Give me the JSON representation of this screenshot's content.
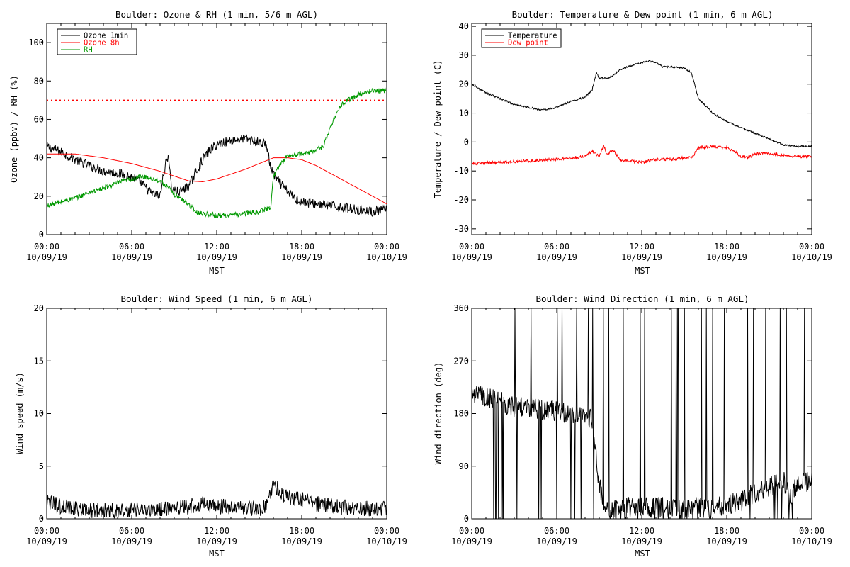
{
  "chart_data": [
    {
      "type": "line",
      "title": "Boulder: Ozone & RH (1 min, 5/6 m AGL)",
      "xlabel": "MST",
      "ylabel": "Ozone (ppbv) / RH (%)",
      "ylim": [
        0,
        110
      ],
      "yticks": [
        0,
        20,
        40,
        60,
        80,
        100
      ],
      "xlim": [
        0,
        24
      ],
      "xtick_hours": [
        0,
        6,
        12,
        18,
        24
      ],
      "xtick_labels": [
        [
          "00:00",
          "10/09/19"
        ],
        [
          "06:00",
          "10/09/19"
        ],
        [
          "12:00",
          "10/09/19"
        ],
        [
          "18:00",
          "10/09/19"
        ],
        [
          "00:00",
          "10/10/19"
        ]
      ],
      "legend": "top-left",
      "reference_line": {
        "y": 70,
        "style": "dotted",
        "color": "#ff0000"
      },
      "series": [
        {
          "name": "Ozone 1min",
          "color": "#000000",
          "noise": 2.5,
          "x": [
            0,
            1,
            2,
            3,
            4,
            5,
            6,
            6.8,
            7.3,
            7.6,
            8,
            8.3,
            8.6,
            8.8,
            9.3,
            9.8,
            10.1,
            10.5,
            11,
            11.5,
            12,
            13,
            14,
            15,
            15.5,
            15.8,
            16.2,
            16.8,
            17.5,
            18,
            19,
            20,
            21,
            22,
            23,
            24
          ],
          "y": [
            46,
            43,
            39,
            36,
            33,
            32,
            30,
            26,
            22,
            21,
            20,
            34,
            42,
            24,
            22,
            24,
            26,
            32,
            39,
            44,
            47,
            49,
            50,
            48,
            47,
            35,
            29,
            24,
            19,
            17,
            16,
            15,
            14,
            13,
            12,
            13
          ]
        },
        {
          "name": "Ozone 8h",
          "color": "#ff0000",
          "noise": 0,
          "x": [
            0,
            2,
            4,
            6,
            8,
            10,
            11,
            12,
            14,
            15,
            16,
            17,
            18,
            19,
            20,
            22,
            24
          ],
          "y": [
            42,
            42,
            40,
            37,
            33,
            28,
            27.5,
            29,
            34,
            37,
            40,
            40,
            39,
            36,
            32,
            24,
            16
          ]
        },
        {
          "name": "RH",
          "color": "#009900",
          "noise": 1.3,
          "x": [
            0,
            1,
            2,
            3,
            4,
            5,
            6,
            6.5,
            7,
            8,
            8.5,
            9,
            10,
            10.5,
            11,
            12,
            13,
            14,
            15,
            15.8,
            16,
            16.5,
            17,
            18,
            19,
            19.5,
            20,
            20.5,
            21,
            22,
            23,
            24
          ],
          "y": [
            15,
            17,
            19,
            22,
            24,
            27,
            29,
            30,
            30,
            28,
            25,
            21,
            16,
            12,
            11,
            10,
            10,
            11,
            12,
            14,
            30,
            37,
            41,
            42,
            44,
            46,
            55,
            64,
            69,
            73,
            75,
            75
          ]
        }
      ]
    },
    {
      "type": "line",
      "title": "Boulder: Temperature & Dew point (1 min, 6 m AGL)",
      "xlabel": "MST",
      "ylabel": "Temperature / Dew point (C)",
      "ylim": [
        -32,
        41
      ],
      "yticks": [
        -30,
        -20,
        -10,
        0,
        10,
        20,
        30,
        40
      ],
      "xlim": [
        0,
        24
      ],
      "xtick_hours": [
        0,
        6,
        12,
        18,
        24
      ],
      "xtick_labels": [
        [
          "00:00",
          "10/09/19"
        ],
        [
          "06:00",
          "10/09/19"
        ],
        [
          "12:00",
          "10/09/19"
        ],
        [
          "18:00",
          "10/09/19"
        ],
        [
          "00:00",
          "10/10/19"
        ]
      ],
      "legend": "top-left",
      "series": [
        {
          "name": "Temperature",
          "color": "#000000",
          "noise": 0.3,
          "x": [
            0,
            1,
            2,
            3,
            4,
            5,
            6,
            7,
            8,
            8.5,
            8.8,
            9,
            9.5,
            10,
            10.5,
            11,
            12,
            12.5,
            13,
            13.5,
            14,
            15,
            15.5,
            16,
            17,
            18,
            19,
            20,
            21,
            22,
            23,
            24
          ],
          "y": [
            20,
            17,
            15,
            13,
            12,
            11,
            12,
            14,
            15.5,
            18,
            24,
            22,
            22,
            23,
            25,
            26,
            27.5,
            28,
            27.5,
            26,
            26,
            25.5,
            24,
            15,
            10,
            7,
            5,
            3,
            1,
            -1,
            -1.5,
            -1.5
          ]
        },
        {
          "name": "Dew point",
          "color": "#ff0000",
          "noise": 0.5,
          "x": [
            0,
            2,
            4,
            6,
            7,
            8,
            8.5,
            9,
            9.3,
            9.5,
            10,
            10.5,
            11,
            12,
            13,
            14,
            15,
            15.6,
            16,
            17,
            18,
            18.5,
            19,
            19.5,
            20,
            21,
            22,
            23,
            24
          ],
          "y": [
            -7.5,
            -7,
            -6.5,
            -6,
            -5.5,
            -5,
            -3,
            -5,
            -1,
            -4,
            -3,
            -6.5,
            -6.5,
            -7,
            -6,
            -6,
            -5.5,
            -5,
            -2,
            -1.5,
            -2,
            -3,
            -5,
            -5.5,
            -4,
            -4,
            -4.5,
            -5,
            -5
          ]
        }
      ]
    },
    {
      "type": "line",
      "title": "Boulder: Wind Speed (1 min, 6 m AGL)",
      "xlabel": "MST",
      "ylabel": "Wind speed (m/s)",
      "ylim": [
        0,
        20
      ],
      "yticks": [
        0,
        5,
        10,
        15,
        20
      ],
      "xlim": [
        0,
        24
      ],
      "xtick_hours": [
        0,
        6,
        12,
        18,
        24
      ],
      "xtick_labels": [
        [
          "00:00",
          "10/09/19"
        ],
        [
          "06:00",
          "10/09/19"
        ],
        [
          "12:00",
          "10/09/19"
        ],
        [
          "18:00",
          "10/09/19"
        ],
        [
          "00:00",
          "10/10/19"
        ]
      ],
      "series": [
        {
          "name": "",
          "color": "#000000",
          "noise": 0.75,
          "x": [
            0,
            1,
            2,
            3,
            4,
            5,
            6,
            7,
            8,
            9,
            10,
            11,
            12,
            13,
            14,
            15,
            15.5,
            16,
            16.5,
            17,
            18,
            19,
            20,
            21,
            22,
            23,
            24
          ],
          "y": [
            1.6,
            1.2,
            1.0,
            0.8,
            0.9,
            0.8,
            0.9,
            0.8,
            0.9,
            1.0,
            1.2,
            1.4,
            1.2,
            1.1,
            1.0,
            1.0,
            1.2,
            3.5,
            2.3,
            2.0,
            1.8,
            1.4,
            1.2,
            1.1,
            1.0,
            1.0,
            1.0
          ]
        }
      ]
    },
    {
      "type": "line",
      "title": "Boulder: Wind Direction (1 min, 6 m AGL)",
      "xlabel": "MST",
      "ylabel": "Wind direction (deg)",
      "ylim": [
        0,
        360
      ],
      "yticks": [
        0,
        90,
        180,
        270,
        360
      ],
      "xlim": [
        0,
        24
      ],
      "xtick_hours": [
        0,
        6,
        12,
        18,
        24
      ],
      "xtick_labels": [
        [
          "00:00",
          "10/09/19"
        ],
        [
          "06:00",
          "10/09/19"
        ],
        [
          "12:00",
          "10/09/19"
        ],
        [
          "18:00",
          "10/09/19"
        ],
        [
          "00:00",
          "10/10/19"
        ]
      ],
      "series": [
        {
          "name": "",
          "color": "#000000",
          "noise": 18,
          "x": [
            0,
            1,
            2,
            3,
            4,
            5,
            6,
            7,
            8,
            8.5,
            9,
            9.3,
            9.8,
            10.5,
            11,
            12,
            13,
            14,
            15,
            16,
            17,
            18,
            19,
            20,
            21,
            22,
            22.5,
            23,
            24
          ],
          "y": [
            215,
            210,
            200,
            190,
            190,
            185,
            185,
            180,
            180,
            170,
            60,
            25,
            15,
            15,
            20,
            20,
            20,
            20,
            15,
            20,
            20,
            25,
            30,
            45,
            55,
            65,
            35,
            60,
            65
          ]
        }
      ]
    }
  ]
}
